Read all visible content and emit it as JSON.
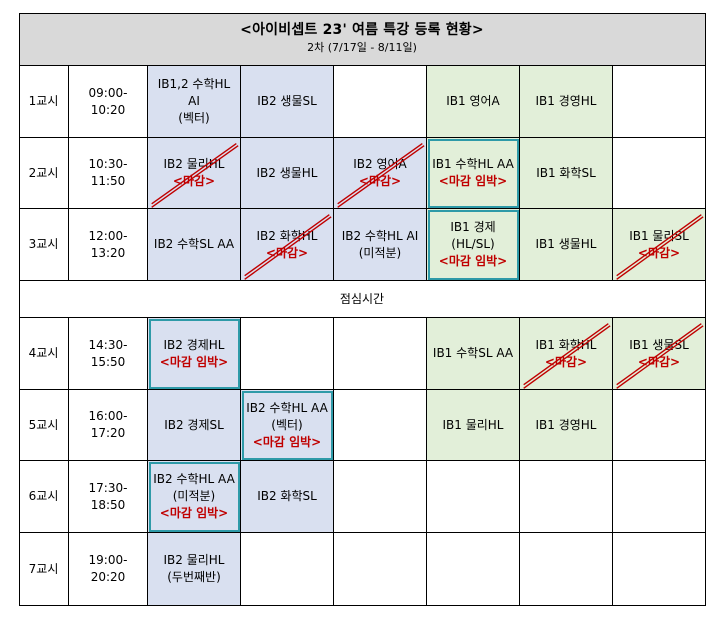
{
  "header": {
    "title": "<아이비셉트 23' 여름 특강 등록 현황>",
    "subtitle": "2차 (7/17일 - 8/11일)"
  },
  "lunch": "점심시간",
  "periods": [
    {
      "label": "1교시",
      "time": [
        "09:00-",
        "10:20"
      ],
      "cells": [
        {
          "lines": [
            "IB1,2 수학HL",
            "AI",
            "(벡터)"
          ],
          "color": "blue"
        },
        {
          "lines": [
            "IB2 생물SL"
          ],
          "color": "blue"
        },
        {
          "lines": [],
          "color": ""
        },
        {
          "lines": [
            "IB1 영어A"
          ],
          "color": "green"
        },
        {
          "lines": [
            "IB1 경영HL"
          ],
          "color": "green"
        },
        {
          "lines": [],
          "color": ""
        }
      ]
    },
    {
      "label": "2교시",
      "time": [
        "10:30-",
        "11:50"
      ],
      "cells": [
        {
          "lines": [
            "IB2 물리HL"
          ],
          "note": "<마감>",
          "color": "blue",
          "slash": true
        },
        {
          "lines": [
            "IB2 생물HL"
          ],
          "color": "blue"
        },
        {
          "lines": [
            "IB2 영어A"
          ],
          "note": "<마감>",
          "color": "blue",
          "slash": true
        },
        {
          "lines": [
            "IB1 수학HL AA"
          ],
          "note": "<마감 임박>",
          "color": "green",
          "highlight": true
        },
        {
          "lines": [
            "IB1 화학SL"
          ],
          "color": "green"
        },
        {
          "lines": [],
          "color": ""
        }
      ]
    },
    {
      "label": "3교시",
      "time": [
        "12:00-",
        "13:20"
      ],
      "cells": [
        {
          "lines": [
            "IB2 수학SL AA"
          ],
          "color": "blue"
        },
        {
          "lines": [
            "IB2 화학HL"
          ],
          "note": "<마감>",
          "color": "blue",
          "slash": true
        },
        {
          "lines": [
            "IB2 수학HL AI",
            "(미적분)"
          ],
          "color": "blue"
        },
        {
          "lines": [
            "IB1 경제",
            "(HL/SL)"
          ],
          "note": "<마감 임박>",
          "color": "green",
          "highlight": true
        },
        {
          "lines": [
            "IB1 생물HL"
          ],
          "color": "green"
        },
        {
          "lines": [
            "IB1 물리SL"
          ],
          "note": "<마감>",
          "color": "green",
          "slash": true
        }
      ]
    },
    {
      "label": "4교시",
      "time": [
        "14:30-",
        "15:50"
      ],
      "cells": [
        {
          "lines": [
            "IB2 경제HL"
          ],
          "note": "<마감 임박>",
          "color": "blue",
          "highlight": true
        },
        {
          "lines": [],
          "color": ""
        },
        {
          "lines": [],
          "color": ""
        },
        {
          "lines": [
            "IB1 수학SL AA"
          ],
          "color": "green"
        },
        {
          "lines": [
            "IB1 화학HL"
          ],
          "note": "<마감>",
          "color": "green",
          "slash": true
        },
        {
          "lines": [
            "IB1 생물SL"
          ],
          "note": "<마감>",
          "color": "green",
          "slash": true
        }
      ]
    },
    {
      "label": "5교시",
      "time": [
        "16:00-",
        "17:20"
      ],
      "cells": [
        {
          "lines": [
            "IB2 경제SL"
          ],
          "color": "blue"
        },
        {
          "lines": [
            "IB2 수학HL AA",
            "(벡터)"
          ],
          "note": "<마감 임박>",
          "color": "blue",
          "highlight": true
        },
        {
          "lines": [],
          "color": ""
        },
        {
          "lines": [
            "IB1 물리HL"
          ],
          "color": "green"
        },
        {
          "lines": [
            "IB1 경영HL"
          ],
          "color": "green"
        },
        {
          "lines": [],
          "color": ""
        }
      ]
    },
    {
      "label": "6교시",
      "time": [
        "17:30-",
        "18:50"
      ],
      "cells": [
        {
          "lines": [
            "IB2 수학HL AA",
            "(미적분)"
          ],
          "note": "<마감 임박>",
          "color": "blue",
          "highlight": true
        },
        {
          "lines": [
            "IB2 화학SL"
          ],
          "color": "blue"
        },
        {
          "lines": [],
          "color": ""
        },
        {
          "lines": [],
          "color": ""
        },
        {
          "lines": [],
          "color": ""
        },
        {
          "lines": [],
          "color": ""
        }
      ]
    },
    {
      "label": "7교시",
      "time": [
        "19:00-",
        "20:20"
      ],
      "cells": [
        {
          "lines": [
            "IB2 물리HL",
            "(두번째반)"
          ],
          "color": "blue"
        },
        {
          "lines": [],
          "color": ""
        },
        {
          "lines": [],
          "color": ""
        },
        {
          "lines": [],
          "color": ""
        },
        {
          "lines": [],
          "color": ""
        },
        {
          "lines": [],
          "color": ""
        }
      ]
    }
  ]
}
